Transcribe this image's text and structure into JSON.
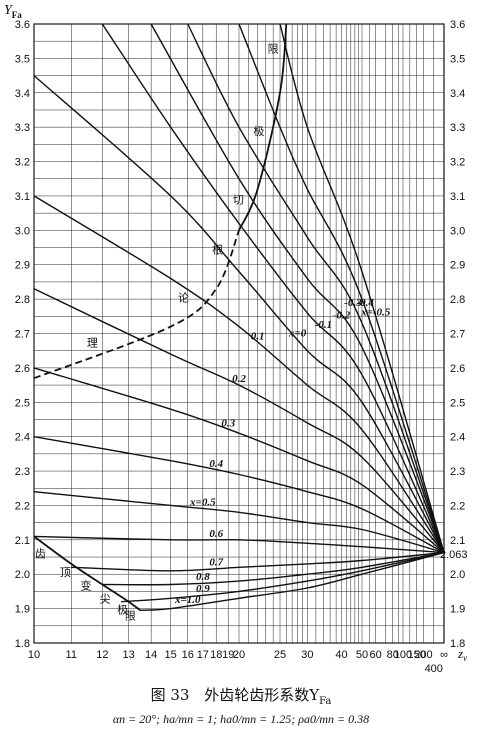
{
  "chart_data": {
    "type": "line",
    "ylabel": "Y",
    "ylabel_sub": "Fa",
    "xlabel": "z",
    "xlabel_sub": "v",
    "x_scale": "reciprocal",
    "ylim": [
      1.8,
      3.6
    ],
    "y_ticks": [
      "1.8",
      "1.9",
      "2.0",
      "2.1",
      "2.2",
      "2.3",
      "2.4",
      "2.5",
      "2.6",
      "2.7",
      "2.8",
      "2.9",
      "3.0",
      "3.1",
      "3.2",
      "3.3",
      "3.4",
      "3.5",
      "3.6"
    ],
    "x_ticks": [
      {
        "label": "10",
        "value": 10
      },
      {
        "label": "11",
        "value": 11
      },
      {
        "label": "12",
        "value": 12
      },
      {
        "label": "13",
        "value": 13
      },
      {
        "label": "14",
        "value": 14
      },
      {
        "label": "15",
        "value": 15
      },
      {
        "label": "16",
        "value": 16
      },
      {
        "label": "17",
        "value": 17
      },
      {
        "label": "18",
        "value": 18
      },
      {
        "label": "19",
        "value": 19
      },
      {
        "label": "20",
        "value": 20
      },
      {
        "label": "25",
        "value": 25
      },
      {
        "label": "30",
        "value": 30
      },
      {
        "label": "40",
        "value": 40
      },
      {
        "label": "50",
        "value": 50
      },
      {
        "label": "60",
        "value": 60
      },
      {
        "label": "80",
        "value": 80
      },
      {
        "label": "100",
        "value": 100
      },
      {
        "label": "150",
        "value": 150
      },
      {
        "label": "200",
        "value": 200
      },
      {
        "label": "400",
        "value": 400
      },
      {
        "label": "∞",
        "value": "inf"
      }
    ],
    "grid": true,
    "convergence_value": "2.063",
    "series": [
      {
        "name": "x=-0.5",
        "points": [
          [
            25,
            3.6
          ],
          [
            30,
            3.3
          ],
          [
            50,
            2.88
          ],
          [
            "inf",
            2.063
          ]
        ]
      },
      {
        "name": "-0.4",
        "points": [
          [
            20,
            3.6
          ],
          [
            25,
            3.3
          ],
          [
            30,
            3.12
          ],
          [
            50,
            2.8
          ],
          [
            "inf",
            2.063
          ]
        ]
      },
      {
        "name": "-0.3",
        "points": [
          [
            16,
            3.6
          ],
          [
            20,
            3.3
          ],
          [
            30,
            2.98
          ],
          [
            50,
            2.73
          ],
          [
            "inf",
            2.063
          ]
        ]
      },
      {
        "name": "-0.2",
        "points": [
          [
            14,
            3.6
          ],
          [
            20,
            3.15
          ],
          [
            30,
            2.86
          ],
          [
            50,
            2.66
          ],
          [
            "inf",
            2.063
          ]
        ]
      },
      {
        "name": "-0.1",
        "points": [
          [
            12,
            3.6
          ],
          [
            15,
            3.3
          ],
          [
            20,
            3.02
          ],
          [
            30,
            2.76
          ],
          [
            50,
            2.58
          ],
          [
            "inf",
            2.063
          ]
        ]
      },
      {
        "name": "x=0",
        "points": [
          [
            10,
            3.45
          ],
          [
            15,
            3.1
          ],
          [
            20,
            2.88
          ],
          [
            30,
            2.65
          ],
          [
            50,
            2.5
          ],
          [
            "inf",
            2.063
          ]
        ]
      },
      {
        "name": "0.1",
        "points": [
          [
            10,
            3.1
          ],
          [
            15,
            2.86
          ],
          [
            20,
            2.72
          ],
          [
            30,
            2.55
          ],
          [
            50,
            2.42
          ],
          [
            "inf",
            2.063
          ]
        ]
      },
      {
        "name": "0.2",
        "points": [
          [
            10,
            2.83
          ],
          [
            15,
            2.64
          ],
          [
            20,
            2.55
          ],
          [
            30,
            2.44
          ],
          [
            50,
            2.34
          ],
          [
            "inf",
            2.063
          ]
        ]
      },
      {
        "name": "0.3",
        "points": [
          [
            10,
            2.6
          ],
          [
            15,
            2.48
          ],
          [
            20,
            2.41
          ],
          [
            30,
            2.33
          ],
          [
            50,
            2.26
          ],
          [
            "inf",
            2.063
          ]
        ]
      },
      {
        "name": "0.4",
        "points": [
          [
            10,
            2.4
          ],
          [
            15,
            2.33
          ],
          [
            20,
            2.29
          ],
          [
            30,
            2.24
          ],
          [
            50,
            2.19
          ],
          [
            "inf",
            2.063
          ]
        ]
      },
      {
        "name": "x=0.5",
        "points": [
          [
            10,
            2.24
          ],
          [
            15,
            2.2
          ],
          [
            20,
            2.18
          ],
          [
            30,
            2.15
          ],
          [
            50,
            2.13
          ],
          [
            "inf",
            2.063
          ]
        ]
      },
      {
        "name": "0.6",
        "points": [
          [
            10,
            2.11
          ],
          [
            15,
            2.1
          ],
          [
            20,
            2.1
          ],
          [
            30,
            2.09
          ],
          [
            50,
            2.08
          ],
          [
            "inf",
            2.063
          ]
        ]
      },
      {
        "name": "0.7",
        "points": [
          [
            11,
            2.02
          ],
          [
            15,
            2.01
          ],
          [
            20,
            2.02
          ],
          [
            30,
            2.03
          ],
          [
            50,
            2.04
          ],
          [
            "inf",
            2.063
          ]
        ]
      },
      {
        "name": "0.8",
        "points": [
          [
            12,
            1.97
          ],
          [
            15,
            1.97
          ],
          [
            20,
            1.98
          ],
          [
            30,
            2.0
          ],
          [
            50,
            2.02
          ],
          [
            "inf",
            2.063
          ]
        ]
      },
      {
        "name": "0.9",
        "points": [
          [
            12.7,
            1.92
          ],
          [
            15,
            1.93
          ],
          [
            20,
            1.95
          ],
          [
            30,
            1.98
          ],
          [
            50,
            2.01
          ],
          [
            "inf",
            2.063
          ]
        ]
      },
      {
        "name": "x=1.0",
        "points": [
          [
            13.5,
            1.895
          ],
          [
            15,
            1.9
          ],
          [
            20,
            1.93
          ],
          [
            30,
            1.96
          ],
          [
            50,
            2.0
          ],
          [
            "inf",
            2.063
          ]
        ]
      }
    ],
    "boundaries": [
      {
        "name": "undercut-limit",
        "labels": [
          "理",
          "论",
          "根",
          "切",
          "极",
          "限"
        ],
        "style": "dashed-then-solid",
        "points": [
          [
            10,
            2.57
          ],
          [
            15,
            2.72
          ],
          [
            18,
            2.83
          ],
          [
            20,
            3.0
          ],
          [
            22,
            3.12
          ],
          [
            25,
            3.4
          ],
          [
            26,
            3.6
          ]
        ]
      },
      {
        "name": "tip-thickness-limit",
        "labels": [
          "齿",
          "顶",
          "变",
          "尖",
          "极",
          "限"
        ],
        "points": [
          [
            10,
            2.11
          ],
          [
            11,
            2.03
          ],
          [
            12,
            1.97
          ],
          [
            13,
            1.92
          ],
          [
            13.5,
            1.895
          ]
        ]
      }
    ],
    "caption": {
      "fig": "图 33",
      "title": "外齿轮齿形系数Y",
      "title_sub": "Fa"
    },
    "parameters": "αn = 20°;  ha/mn = 1;  ha0/mn = 1.25;  ρa0/mn = 0.38"
  }
}
